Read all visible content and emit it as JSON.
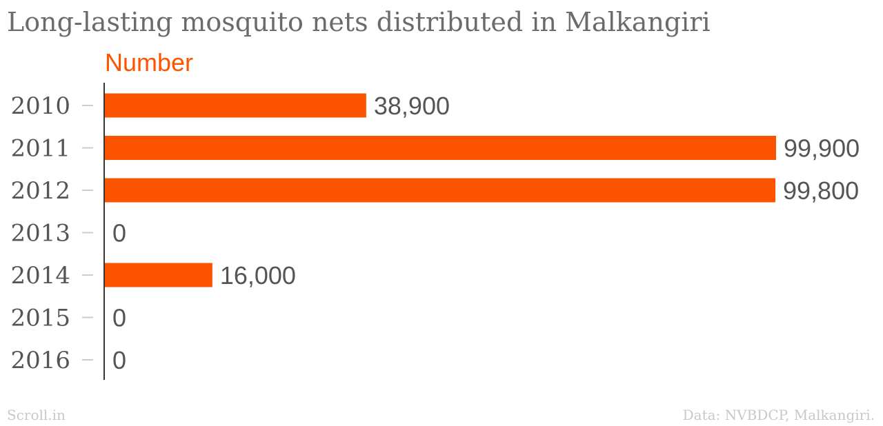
{
  "chart_data": {
    "type": "bar",
    "orientation": "horizontal",
    "title": "Long-lasting mosquito nets distributed in Malkangiri",
    "categories": [
      "2010",
      "2011",
      "2012",
      "2013",
      "2014",
      "2015",
      "2016"
    ],
    "series": [
      {
        "name": "Number",
        "values": [
          38900,
          99900,
          99800,
          0,
          16000,
          0,
          0
        ],
        "value_labels": [
          "38,900",
          "99,900",
          "99,800",
          "0",
          "16,000",
          "0",
          "0"
        ],
        "color": "#fc5400"
      }
    ],
    "xlabel": "",
    "ylabel": "",
    "xlim": [
      0,
      99900
    ],
    "grid": false,
    "legend": "none"
  },
  "footer": {
    "source_left": "Scroll.in",
    "source_right": "Data: NVBDCP, Malkangiri."
  },
  "colors": {
    "bar": "#fc5400",
    "axis": "#333333",
    "tick": "#cccccc",
    "text": "#555555"
  }
}
